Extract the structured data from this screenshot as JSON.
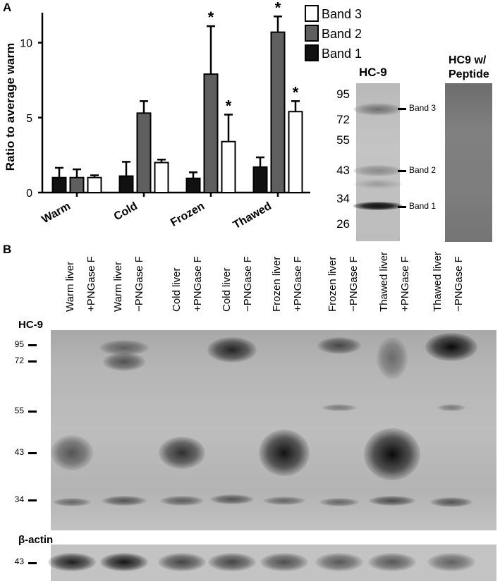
{
  "panel_a": {
    "letter": "A",
    "chart_data": {
      "type": "bar",
      "ylabel": "Ratio to average warm",
      "ylim": [
        0,
        12
      ],
      "yticks": [
        0,
        5,
        10
      ],
      "categories": [
        "Warm",
        "Cold",
        "Frozen",
        "Thawed"
      ],
      "series": [
        {
          "name": "Band 1",
          "color": "#111111",
          "values": [
            1.0,
            1.1,
            0.95,
            1.7
          ],
          "errors": [
            0.65,
            0.95,
            0.4,
            0.65
          ],
          "significant": [
            false,
            false,
            false,
            false
          ]
        },
        {
          "name": "Band 2",
          "color": "#5f5f5f",
          "values": [
            1.0,
            5.3,
            7.9,
            10.7
          ],
          "errors": [
            0.55,
            0.8,
            3.2,
            1.05
          ],
          "significant": [
            false,
            false,
            true,
            true
          ]
        },
        {
          "name": "Band 3",
          "color": "#ffffff",
          "values": [
            1.0,
            2.0,
            3.4,
            5.4
          ],
          "errors": [
            0.15,
            0.2,
            1.8,
            0.7
          ],
          "significant": [
            false,
            false,
            true,
            true
          ]
        }
      ],
      "significance_marker": "*",
      "legend_order": [
        "Band 3",
        "Band 2",
        "Band 1"
      ],
      "legend_position": "top-right"
    },
    "blot_hc9": {
      "title": "HC-9",
      "markers": [
        "95",
        "72",
        "55",
        "43",
        "34",
        "26"
      ],
      "bands": [
        "Band 3",
        "Band 2",
        "Band 1"
      ]
    },
    "blot_peptide": {
      "title_line1": "HC9 w/",
      "title_line2": "Peptide"
    }
  },
  "panel_b": {
    "letter": "B",
    "lanes": [
      {
        "line1": "Warm liver",
        "line2": "+PNGase F"
      },
      {
        "line1": "Warm liver",
        "line2": "−PNGase F"
      },
      {
        "line1": "Cold liver",
        "line2": "+PNGase F"
      },
      {
        "line1": "Cold liver",
        "line2": "−PNGase F"
      },
      {
        "line1": "Frozen liver",
        "line2": "+PNGase F"
      },
      {
        "line1": "Frozen liver",
        "line2": "−PNGase F"
      },
      {
        "line1": "Thawed liver",
        "line2": "+PNGase F"
      },
      {
        "line1": "Thawed liver",
        "line2": "−PNGase F"
      }
    ],
    "hc9_label": "HC-9",
    "hc9_markers": [
      "95",
      "72",
      "55",
      "43",
      "34"
    ],
    "actin_label": "β-actin",
    "actin_marker": "43"
  }
}
